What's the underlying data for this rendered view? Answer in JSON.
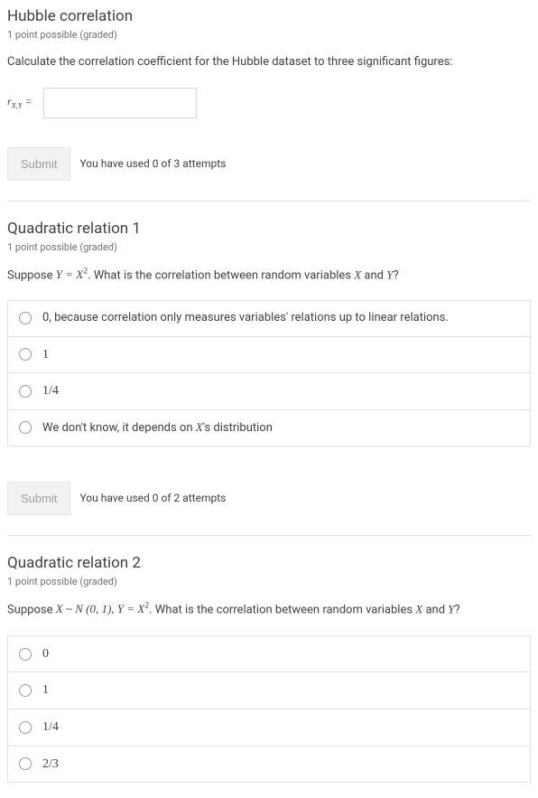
{
  "problems": [
    {
      "title": "Hubble correlation",
      "points": "1 point possible (graded)",
      "prompt_plain": "Calculate the correlation coefficient for the Hubble dataset to three significant figures:",
      "input_label_html": "r<sub style='font-style:italic;font-size:0.75em'>X,Y</sub> =",
      "submit": "Submit",
      "attempts": "You have used 0 of 3 attempts"
    },
    {
      "title": "Quadratic relation 1",
      "points": "1 point possible (graded)",
      "prompt_prefix": "Suppose ",
      "prompt_math": "Y = X²",
      "prompt_mid": ". What is the correlation between random variables ",
      "var_x": "X",
      "and": " and ",
      "var_y": "Y",
      "qmark": "?",
      "choices": [
        "0, because correlation only measures variables' relations up to linear relations.",
        "1",
        "1/4",
        "We don't know, it depends on X's distribution"
      ],
      "submit": "Submit",
      "attempts": "You have used 0 of 2 attempts"
    },
    {
      "title": "Quadratic relation 2",
      "points": "1 point possible (graded)",
      "prompt_prefix": "Suppose ",
      "prompt_math": "X ~ 𝒩 (0, 1), Y = X²",
      "prompt_mid": ". What is the correlation between random variables ",
      "var_x": "X",
      "and": " and ",
      "var_y": "Y",
      "qmark": "?",
      "choices": [
        "0",
        "1",
        "1/4",
        "2/3"
      ]
    }
  ],
  "colors": {
    "text": "#414141",
    "subtext": "#707070",
    "border": "#e2e2e2",
    "input_border": "#d6d6d6",
    "btn_bg": "#f2f2f2",
    "btn_text": "#a0a0a0",
    "radio_border": "#9c9c9c",
    "background": "#ffffff"
  }
}
